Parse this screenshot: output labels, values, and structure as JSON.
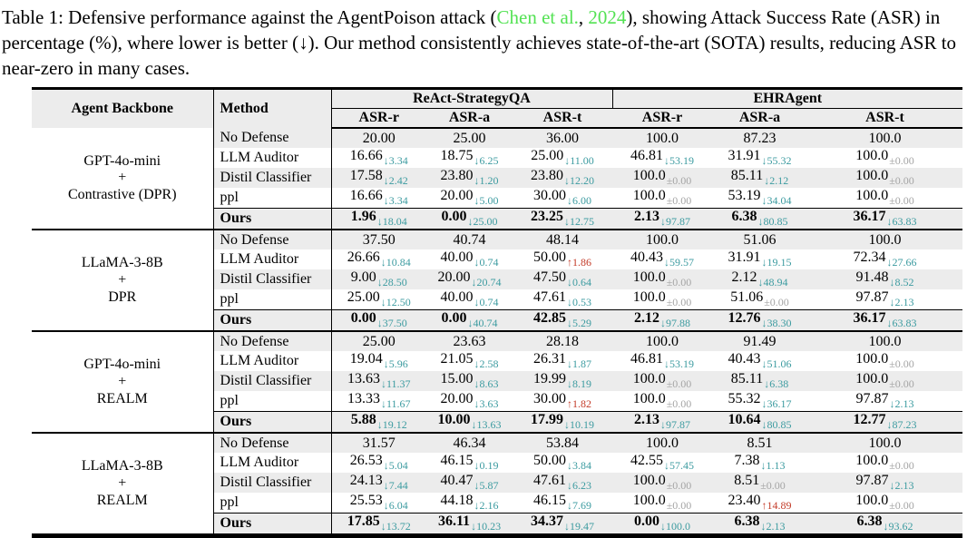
{
  "caption": {
    "part1": "Table 1: Defensive performance against the AgentPoison attack (",
    "cite_author": "Chen et al.",
    "cite_sep": ", ",
    "cite_year": "2024",
    "part2": "), showing Attack Success Rate (ASR) in percentage (%), where lower is better (↓). Our method consistently achieves state-of-the-art (SOTA) results, reducing ASR to near-zero in many cases."
  },
  "colors": {
    "decrease_teal": "#3c9ba0",
    "increase_red": "#c33b28",
    "neutral_gray": "#a5a5a5",
    "citation_green": "#53e253",
    "stripe_gray": "#ececec"
  },
  "table": {
    "header": {
      "backbone": "Agent Backbone",
      "method": "Method",
      "groups": [
        {
          "label": "ReAct-StrategyQA",
          "subs": [
            "ASR-r",
            "ASR-a",
            "ASR-t"
          ]
        },
        {
          "label": "EHRAgent",
          "subs": [
            "ASR-r",
            "ASR-a",
            "ASR-t"
          ]
        }
      ]
    },
    "blocks": [
      {
        "backbone": [
          "GPT-4o-mini",
          "+",
          "Contrastive (DPR)"
        ],
        "rows": [
          {
            "method": "No Defense",
            "cells": [
              {
                "v": "20.00"
              },
              {
                "v": "25.00"
              },
              {
                "v": "36.00"
              },
              {
                "v": "100.0"
              },
              {
                "v": "87.23"
              },
              {
                "v": "100.0"
              }
            ]
          },
          {
            "method": "LLM Auditor",
            "cells": [
              {
                "v": "16.66",
                "s": "↓3.34",
                "t": "down"
              },
              {
                "v": "18.75",
                "s": "↓6.25",
                "t": "down"
              },
              {
                "v": "25.00",
                "s": "↓11.00",
                "t": "down"
              },
              {
                "v": "46.81",
                "s": "↓53.19",
                "t": "down"
              },
              {
                "v": "31.91",
                "s": "↓55.32",
                "t": "down"
              },
              {
                "v": "100.0",
                "s": "±0.00",
                "t": "pm"
              }
            ]
          },
          {
            "method": "Distil Classifier",
            "cells": [
              {
                "v": "17.58",
                "s": "↓2.42",
                "t": "down"
              },
              {
                "v": "23.80",
                "s": "↓1.20",
                "t": "down"
              },
              {
                "v": "23.80",
                "s": "↓12.20",
                "t": "down"
              },
              {
                "v": "100.0",
                "s": "±0.00",
                "t": "pm"
              },
              {
                "v": "85.11",
                "s": "↓2.12",
                "t": "down"
              },
              {
                "v": "100.0",
                "s": "±0.00",
                "t": "pm"
              }
            ]
          },
          {
            "method": "ppl",
            "cells": [
              {
                "v": "16.66",
                "s": "↓3.34",
                "t": "down"
              },
              {
                "v": "20.00",
                "s": "↓5.00",
                "t": "down"
              },
              {
                "v": "30.00",
                "s": "↓6.00",
                "t": "down"
              },
              {
                "v": "100.0",
                "s": "±0.00",
                "t": "pm"
              },
              {
                "v": "53.19",
                "s": "↓34.04",
                "t": "down"
              },
              {
                "v": "100.0",
                "s": "±0.00",
                "t": "pm"
              }
            ]
          },
          {
            "method": "Ours",
            "ours": true,
            "cells": [
              {
                "v": "1.96",
                "s": "↓18.04",
                "t": "down"
              },
              {
                "v": "0.00",
                "s": "↓25.00",
                "t": "down"
              },
              {
                "v": "23.25",
                "s": "↓12.75",
                "t": "down"
              },
              {
                "v": "2.13",
                "s": "↓97.87",
                "t": "down"
              },
              {
                "v": "6.38",
                "s": "↓80.85",
                "t": "down"
              },
              {
                "v": "36.17",
                "s": "↓63.83",
                "t": "down"
              }
            ]
          }
        ]
      },
      {
        "backbone": [
          "LLaMA-3-8B",
          "+",
          "DPR"
        ],
        "rows": [
          {
            "method": "No Defense",
            "cells": [
              {
                "v": "37.50"
              },
              {
                "v": "40.74"
              },
              {
                "v": "48.14"
              },
              {
                "v": "100.0"
              },
              {
                "v": "51.06"
              },
              {
                "v": "100.0"
              }
            ]
          },
          {
            "method": "LLM Auditor",
            "cells": [
              {
                "v": "26.66",
                "s": "↓10.84",
                "t": "down"
              },
              {
                "v": "40.00",
                "s": "↓0.74",
                "t": "down"
              },
              {
                "v": "50.00",
                "s": "↑1.86",
                "t": "up"
              },
              {
                "v": "40.43",
                "s": "↓59.57",
                "t": "down"
              },
              {
                "v": "31.91",
                "s": "↓19.15",
                "t": "down"
              },
              {
                "v": "72.34",
                "s": "↓27.66",
                "t": "down"
              }
            ]
          },
          {
            "method": "Distil Classifier",
            "cells": [
              {
                "v": "9.00",
                "s": "↓28.50",
                "t": "down"
              },
              {
                "v": "20.00",
                "s": "↓20.74",
                "t": "down"
              },
              {
                "v": "47.50",
                "s": "↓0.64",
                "t": "down"
              },
              {
                "v": "100.0",
                "s": "±0.00",
                "t": "pm"
              },
              {
                "v": "2.12",
                "s": "↓48.94",
                "t": "down"
              },
              {
                "v": "91.48",
                "s": "↓8.52",
                "t": "down"
              }
            ]
          },
          {
            "method": "ppl",
            "cells": [
              {
                "v": "25.00",
                "s": "↓12.50",
                "t": "down"
              },
              {
                "v": "40.00",
                "s": "↓0.74",
                "t": "down"
              },
              {
                "v": "47.61",
                "s": "↓0.53",
                "t": "down"
              },
              {
                "v": "100.0",
                "s": "±0.00",
                "t": "pm"
              },
              {
                "v": "51.06",
                "s": "±0.00",
                "t": "pm"
              },
              {
                "v": "97.87",
                "s": "↓2.13",
                "t": "down"
              }
            ]
          },
          {
            "method": "Ours",
            "ours": true,
            "cells": [
              {
                "v": "0.00",
                "s": "↓37.50",
                "t": "down"
              },
              {
                "v": "0.00",
                "s": "↓40.74",
                "t": "down"
              },
              {
                "v": "42.85",
                "s": "↓5.29",
                "t": "down"
              },
              {
                "v": "2.12",
                "s": "↓97.88",
                "t": "down"
              },
              {
                "v": "12.76",
                "s": "↓38.30",
                "t": "down"
              },
              {
                "v": "36.17",
                "s": "↓63.83",
                "t": "down"
              }
            ]
          }
        ]
      },
      {
        "backbone": [
          "GPT-4o-mini",
          "+",
          "REALM"
        ],
        "rows": [
          {
            "method": "No Defense",
            "cells": [
              {
                "v": "25.00"
              },
              {
                "v": "23.63"
              },
              {
                "v": "28.18"
              },
              {
                "v": "100.0"
              },
              {
                "v": "91.49"
              },
              {
                "v": "100.0"
              }
            ]
          },
          {
            "method": "LLM Auditor",
            "cells": [
              {
                "v": "19.04",
                "s": "↓5.96",
                "t": "down"
              },
              {
                "v": "21.05",
                "s": "↓2.58",
                "t": "down"
              },
              {
                "v": "26.31",
                "s": "↓1.87",
                "t": "down"
              },
              {
                "v": "46.81",
                "s": "↓53.19",
                "t": "down"
              },
              {
                "v": "40.43",
                "s": "↓51.06",
                "t": "down"
              },
              {
                "v": "100.0",
                "s": "±0.00",
                "t": "pm"
              }
            ]
          },
          {
            "method": "Distil Classifier",
            "cells": [
              {
                "v": "13.63",
                "s": "↓11.37",
                "t": "down"
              },
              {
                "v": "15.00",
                "s": "↓8.63",
                "t": "down"
              },
              {
                "v": "19.99",
                "s": "↓8.19",
                "t": "down"
              },
              {
                "v": "100.0",
                "s": "±0.00",
                "t": "pm"
              },
              {
                "v": "85.11",
                "s": "↓6.38",
                "t": "down"
              },
              {
                "v": "100.0",
                "s": "±0.00",
                "t": "pm"
              }
            ]
          },
          {
            "method": "ppl",
            "cells": [
              {
                "v": "13.33",
                "s": "↓11.67",
                "t": "down"
              },
              {
                "v": "20.00",
                "s": "↓3.63",
                "t": "down"
              },
              {
                "v": "30.00",
                "s": "↑1.82",
                "t": "up"
              },
              {
                "v": "100.0",
                "s": "±0.00",
                "t": "pm"
              },
              {
                "v": "55.32",
                "s": "↓36.17",
                "t": "down"
              },
              {
                "v": "97.87",
                "s": "↓2.13",
                "t": "down"
              }
            ]
          },
          {
            "method": "Ours",
            "ours": true,
            "cells": [
              {
                "v": "5.88",
                "s": "↓19.12",
                "t": "down"
              },
              {
                "v": "10.00",
                "s": "↓13.63",
                "t": "down"
              },
              {
                "v": "17.99",
                "s": "↓10.19",
                "t": "down"
              },
              {
                "v": "2.13",
                "s": "↓97.87",
                "t": "down"
              },
              {
                "v": "10.64",
                "s": "↓80.85",
                "t": "down"
              },
              {
                "v": "12.77",
                "s": "↓87.23",
                "t": "down"
              }
            ]
          }
        ]
      },
      {
        "backbone": [
          "LLaMA-3-8B",
          "+",
          "REALM"
        ],
        "rows": [
          {
            "method": "No Defense",
            "cells": [
              {
                "v": "31.57"
              },
              {
                "v": "46.34"
              },
              {
                "v": "53.84"
              },
              {
                "v": "100.0"
              },
              {
                "v": "8.51"
              },
              {
                "v": "100.0"
              }
            ]
          },
          {
            "method": "LLM Auditor",
            "cells": [
              {
                "v": "26.53",
                "s": "↓5.04",
                "t": "down"
              },
              {
                "v": "46.15",
                "s": "↓0.19",
                "t": "down"
              },
              {
                "v": "50.00",
                "s": "↓3.84",
                "t": "down"
              },
              {
                "v": "42.55",
                "s": "↓57.45",
                "t": "down"
              },
              {
                "v": "7.38",
                "s": "↓1.13",
                "t": "down"
              },
              {
                "v": "100.0",
                "s": "±0.00",
                "t": "pm"
              }
            ]
          },
          {
            "method": "Distil Classifier",
            "cells": [
              {
                "v": "24.13",
                "s": "↓7.44",
                "t": "down"
              },
              {
                "v": "40.47",
                "s": "↓5.87",
                "t": "down"
              },
              {
                "v": "47.61",
                "s": "↓6.23",
                "t": "down"
              },
              {
                "v": "100.0",
                "s": "±0.00",
                "t": "pm"
              },
              {
                "v": "8.51",
                "s": "±0.00",
                "t": "pm"
              },
              {
                "v": "97.87",
                "s": "↓2.13",
                "t": "down"
              }
            ]
          },
          {
            "method": "ppl",
            "cells": [
              {
                "v": "25.53",
                "s": "↓6.04",
                "t": "down"
              },
              {
                "v": "44.18",
                "s": "↓2.16",
                "t": "down"
              },
              {
                "v": "46.15",
                "s": "↓7.69",
                "t": "down"
              },
              {
                "v": "100.0",
                "s": "±0.00",
                "t": "pm"
              },
              {
                "v": "23.40",
                "s": "↑14.89",
                "t": "up"
              },
              {
                "v": "100.0",
                "s": "±0.00",
                "t": "pm"
              }
            ]
          },
          {
            "method": "Ours",
            "ours": true,
            "cells": [
              {
                "v": "17.85",
                "s": "↓13.72",
                "t": "down"
              },
              {
                "v": "36.11",
                "s": "↓10.23",
                "t": "down"
              },
              {
                "v": "34.37",
                "s": "↓19.47",
                "t": "down"
              },
              {
                "v": "0.00",
                "s": "↓100.0",
                "t": "down"
              },
              {
                "v": "6.38",
                "s": "↓2.13",
                "t": "down"
              },
              {
                "v": "6.38",
                "s": "↓93.62",
                "t": "down"
              }
            ]
          }
        ]
      }
    ]
  }
}
